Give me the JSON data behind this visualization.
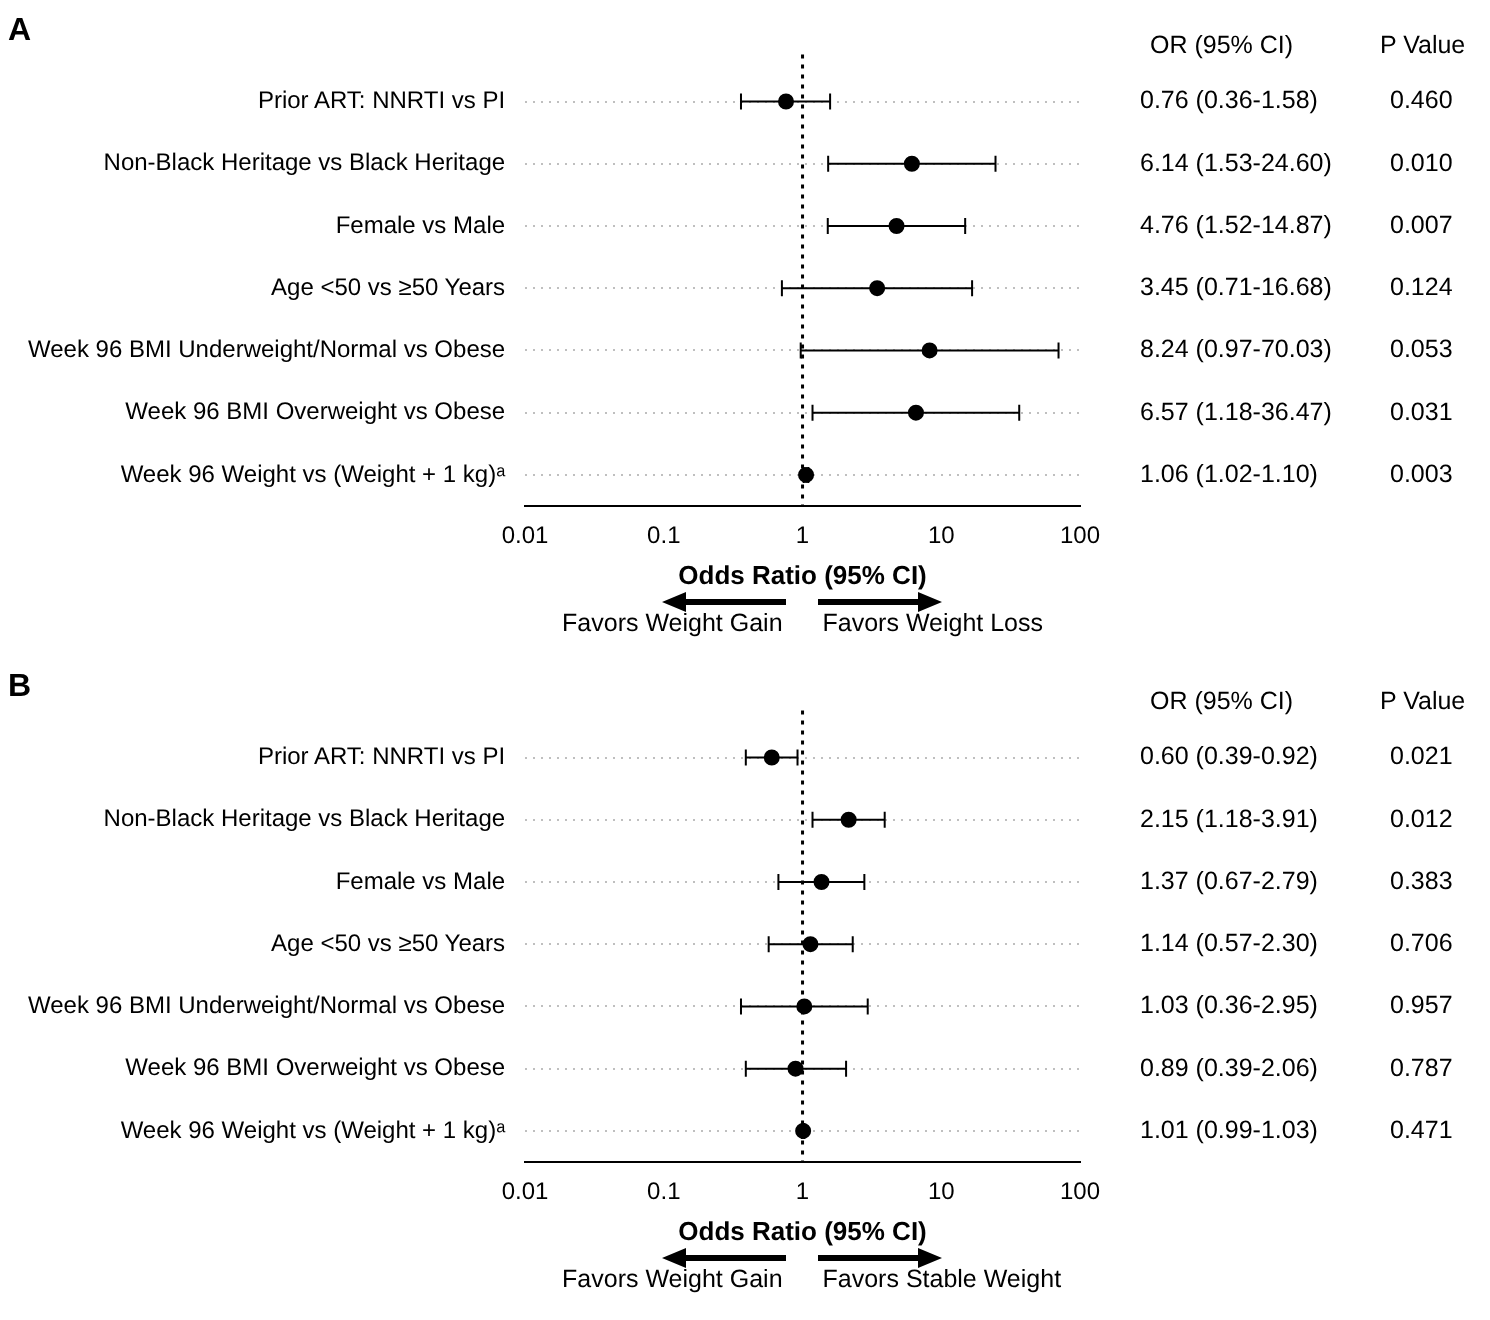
{
  "chart_data": [
    {
      "type": "scatter",
      "title": "A",
      "orientation": "horizontal",
      "xlabel": "Odds Ratio (95% CI)",
      "log": "x",
      "xlim": [
        0.01,
        100
      ],
      "xticks": [
        0.01,
        0.1,
        1,
        10,
        100
      ],
      "grid": "y",
      "marker": "circle",
      "color": "#000000",
      "categories": [
        "Prior ART: NNRTI vs PI",
        "Non-Black Heritage vs Black Heritage",
        "Female vs Male",
        "Age <50 vs ≥50 Years",
        "Week 96 BMI Underweight/Normal vs Obese",
        "Week 96 BMI Overweight vs Obese",
        "Week 96 Weight vs (Weight + 1 kg)ᵃ"
      ],
      "values": [
        0.76,
        6.14,
        4.76,
        3.45,
        8.24,
        6.57,
        1.06
      ],
      "errors": [
        [
          0.36,
          1.58
        ],
        [
          1.53,
          24.6
        ],
        [
          1.52,
          14.87
        ],
        [
          0.71,
          16.68
        ],
        [
          0.97,
          70.03
        ],
        [
          1.18,
          36.47
        ],
        [
          1.02,
          1.1
        ]
      ],
      "ref_lines": [
        {
          "axis": "x",
          "value": 1,
          "line_style": "dotted",
          "color": "#000000"
        }
      ],
      "annotations": [
        "OR (95% CI)",
        "P Value",
        "Favors Weight Gain",
        "Favors Weight Loss",
        "0.76 (0.36-1.58)",
        "6.14 (1.53-24.60)",
        "4.76 (1.52-14.87)",
        "3.45 (0.71-16.68)",
        "8.24 (0.97-70.03)",
        "6.57 (1.18-36.47)",
        "1.06 (1.02-1.10)",
        "0.460",
        "0.010",
        "0.007",
        "0.124",
        "0.053",
        "0.031",
        "0.003"
      ]
    },
    {
      "type": "scatter",
      "title": "B",
      "orientation": "horizontal",
      "xlabel": "Odds Ratio (95% CI)",
      "log": "x",
      "xlim": [
        0.01,
        100
      ],
      "xticks": [
        0.01,
        0.1,
        1,
        10,
        100
      ],
      "grid": "y",
      "marker": "circle",
      "color": "#000000",
      "categories": [
        "Prior ART: NNRTI vs PI",
        "Non-Black Heritage vs Black Heritage",
        "Female vs Male",
        "Age <50 vs ≥50 Years",
        "Week 96 BMI Underweight/Normal vs Obese",
        "Week 96 BMI Overweight vs Obese",
        "Week 96 Weight vs (Weight + 1 kg)ᵃ"
      ],
      "values": [
        0.6,
        2.15,
        1.37,
        1.14,
        1.03,
        0.89,
        1.01
      ],
      "errors": [
        [
          0.39,
          0.92
        ],
        [
          1.18,
          3.91
        ],
        [
          0.67,
          2.79
        ],
        [
          0.57,
          2.3
        ],
        [
          0.36,
          2.95
        ],
        [
          0.39,
          2.06
        ],
        [
          0.99,
          1.03
        ]
      ],
      "ref_lines": [
        {
          "axis": "x",
          "value": 1,
          "line_style": "dotted",
          "color": "#000000"
        }
      ],
      "annotations": [
        "OR (95% CI)",
        "P Value",
        "Favors Weight Gain",
        "Favors Stable Weight",
        "0.60 (0.39-0.92)",
        "2.15 (1.18-3.91)",
        "1.37 (0.67-2.79)",
        "1.14 (0.57-2.30)",
        "1.03 (0.36-2.95)",
        "0.89 (0.39-2.06)",
        "1.01 (0.99-1.03)",
        "0.021",
        "0.012",
        "0.383",
        "0.706",
        "0.957",
        "0.787",
        "0.471"
      ]
    }
  ]
}
